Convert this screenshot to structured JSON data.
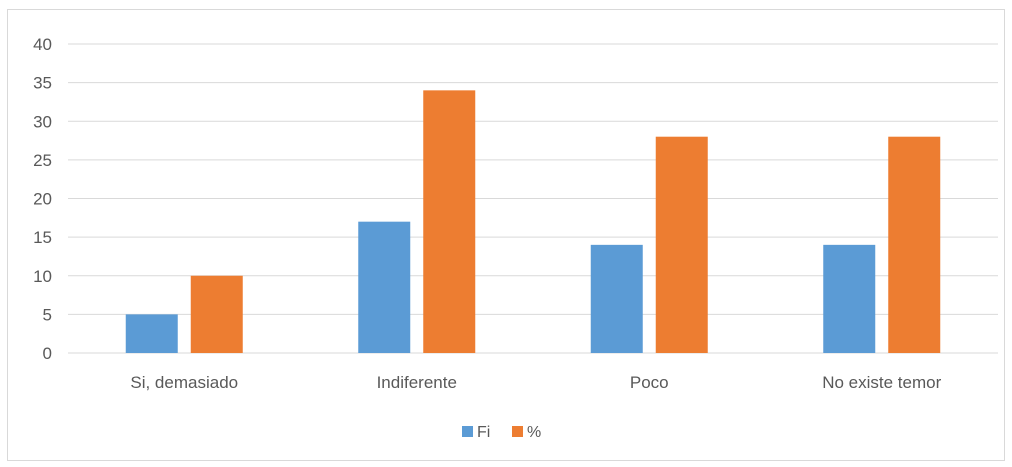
{
  "chart_data": {
    "type": "bar",
    "title": "",
    "xlabel": "",
    "ylabel": "",
    "categories": [
      "Si, demasiado",
      "Indiferente",
      "Poco",
      "No existe temor"
    ],
    "series": [
      {
        "name": "Fi",
        "values": [
          5,
          17,
          14,
          14
        ],
        "color": "#5b9bd5"
      },
      {
        "name": "%",
        "values": [
          10,
          34,
          28,
          28
        ],
        "color": "#ed7d31"
      }
    ],
    "ylim": [
      0,
      40
    ],
    "yticks": [
      "0",
      "5",
      "10",
      "15",
      "20",
      "25",
      "30",
      "35",
      "40"
    ],
    "grid": true,
    "legend_position": "bottom-center"
  }
}
